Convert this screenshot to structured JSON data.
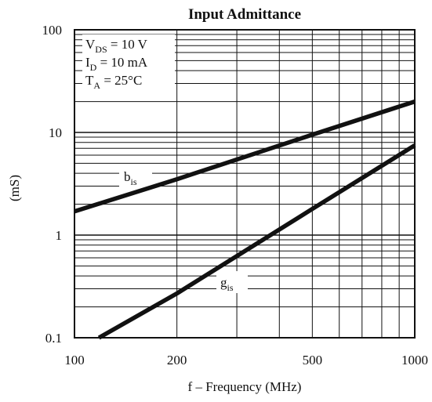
{
  "chart_data": {
    "type": "line",
    "title": "Input Admittance",
    "xlabel": "f – Frequency (MHz)",
    "ylabel": "(mS)",
    "xscale": "log",
    "yscale": "log",
    "xlim": [
      100,
      1000
    ],
    "ylim": [
      0.1,
      100
    ],
    "grid": true,
    "x_ticks": [
      {
        "value": 100,
        "label": "100"
      },
      {
        "value": 200,
        "label": "200"
      },
      {
        "value": 500,
        "label": "500"
      },
      {
        "value": 1000,
        "label": "1000"
      }
    ],
    "y_ticks": [
      {
        "value": 0.1,
        "label": "0.1"
      },
      {
        "value": 1,
        "label": "1"
      },
      {
        "value": 10,
        "label": "10"
      },
      {
        "value": 100,
        "label": "100"
      }
    ],
    "conditions": [
      {
        "main": "V",
        "sub": "DS",
        "rest": " = 10 V"
      },
      {
        "main": "I",
        "sub": "D",
        "rest": " = 10 mA"
      },
      {
        "main": "T",
        "sub": "A",
        "rest": " = 25°C"
      }
    ],
    "series": [
      {
        "name_main": "b",
        "name_sub": "is",
        "x": [
          100,
          200,
          500,
          1000
        ],
        "y": [
          1.7,
          3.5,
          9.5,
          20
        ]
      },
      {
        "name_main": "g",
        "name_sub": "is",
        "x": [
          118,
          200,
          500,
          1000
        ],
        "y": [
          0.1,
          0.27,
          1.8,
          7.5
        ]
      }
    ]
  }
}
